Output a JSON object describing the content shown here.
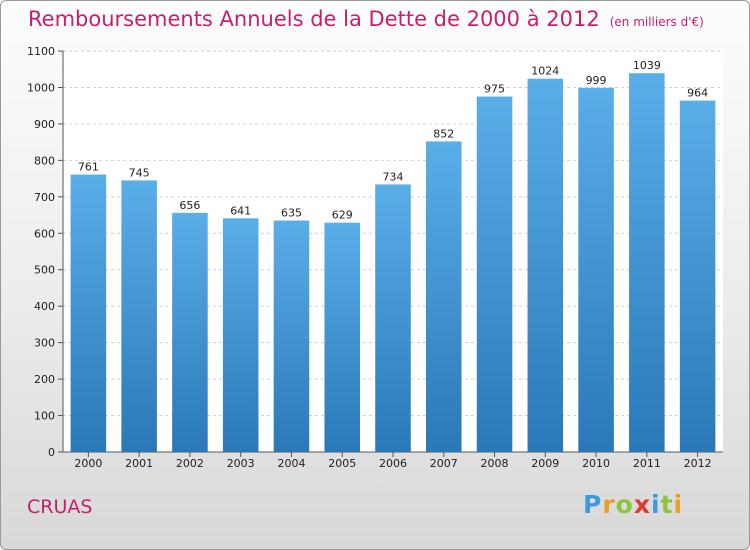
{
  "chart_data": {
    "type": "bar",
    "title": "Remboursements Annuels de la Dette de 2000 à 2012",
    "unit_note": "(en milliers d'€)",
    "categories": [
      "2000",
      "2001",
      "2002",
      "2003",
      "2004",
      "2005",
      "2006",
      "2007",
      "2008",
      "2009",
      "2010",
      "2011",
      "2012"
    ],
    "values": [
      761,
      745,
      656,
      641,
      635,
      629,
      734,
      852,
      975,
      1024,
      999,
      1039,
      964
    ],
    "ylim": [
      0,
      1100
    ],
    "yticks": [
      0,
      100,
      200,
      300,
      400,
      500,
      600,
      700,
      800,
      900,
      1000,
      1100
    ],
    "grid": true,
    "bar_color_top": "#5aaee8",
    "bar_color_bottom": "#2a78b8"
  },
  "footer": {
    "commune": "CRUAS",
    "logo_letters": [
      "P",
      "r",
      "o",
      "x",
      "i",
      "t",
      "i"
    ],
    "logo_colors": [
      "#3a9be0",
      "#e8a020",
      "#8cc63f",
      "#e03a2a",
      "#3a9be0",
      "#8cc63f",
      "#e8a020"
    ]
  },
  "colors": {
    "title": "#c81e6e"
  }
}
